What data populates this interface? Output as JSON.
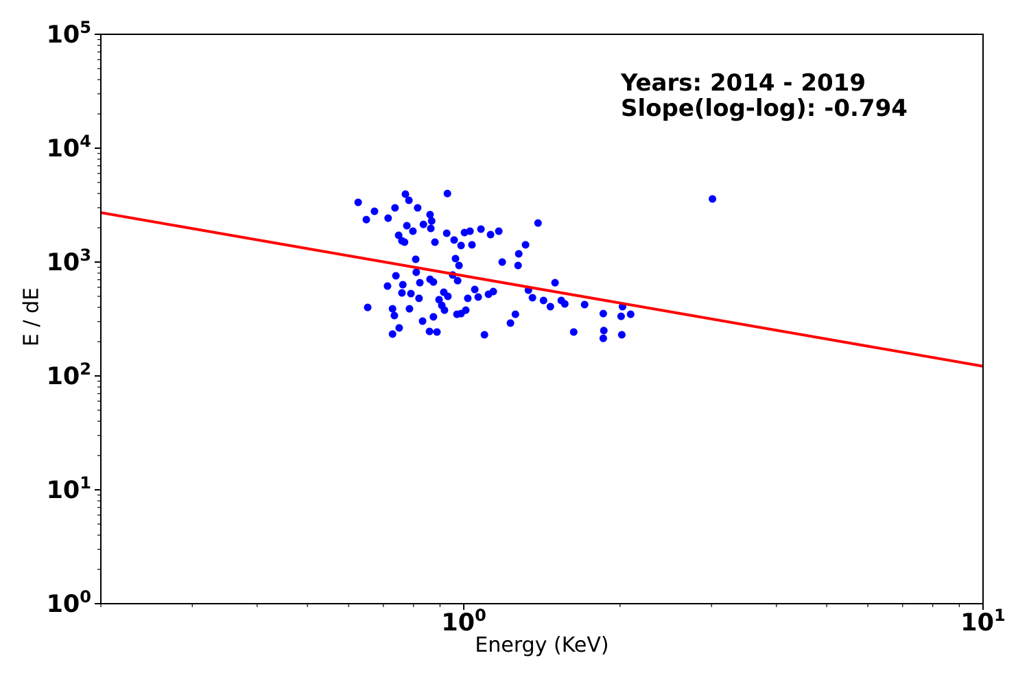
{
  "chart_data": {
    "type": "scatter",
    "title": "",
    "xlabel": "Energy (KeV)",
    "ylabel": "E / dE",
    "x_scale": "log",
    "y_scale": "log",
    "xlim": [
      0.2,
      10
    ],
    "ylim": [
      1,
      100000
    ],
    "x_tick_exponents": [
      0,
      1
    ],
    "y_tick_exponents": [
      0,
      1,
      2,
      3,
      4,
      5
    ],
    "grid": false,
    "legend": "none",
    "marker_color": "#0000ff",
    "line_color": "#ff0000",
    "text_color": "#000000",
    "annotation_lines": [
      "Years: 2014 - 2019",
      "Slope(log-log): -0.794"
    ],
    "fit_line": {
      "slope_loglog": -0.794,
      "value_at_1kev": 757,
      "x_range": [
        0.2,
        10
      ]
    },
    "points": [
      [
        0.626,
        3343
      ],
      [
        0.649,
        2361
      ],
      [
        0.673,
        2790
      ],
      [
        0.715,
        2430
      ],
      [
        0.737,
        2992
      ],
      [
        0.772,
        3947
      ],
      [
        0.784,
        3484
      ],
      [
        0.777,
        2085
      ],
      [
        0.798,
        1866
      ],
      [
        0.815,
        2992
      ],
      [
        0.749,
        1718
      ],
      [
        0.76,
        1538
      ],
      [
        0.769,
        1496
      ],
      [
        0.836,
        2143
      ],
      [
        0.861,
        2606
      ],
      [
        0.867,
        2296
      ],
      [
        0.864,
        1972
      ],
      [
        0.88,
        1496
      ],
      [
        0.93,
        4000
      ],
      [
        0.927,
        1791
      ],
      [
        0.958,
        1560
      ],
      [
        0.988,
        1396
      ],
      [
        0.808,
        1057
      ],
      [
        0.964,
        1072
      ],
      [
        1.003,
        1816
      ],
      [
        1.028,
        1866
      ],
      [
        1.037,
        1416
      ],
      [
        1.079,
        1945
      ],
      [
        1.126,
        1742
      ],
      [
        1.168,
        1866
      ],
      [
        1.39,
        2203
      ],
      [
        1.315,
        1416
      ],
      [
        1.276,
        1181
      ],
      [
        1.186,
        1000
      ],
      [
        1.272,
        933
      ],
      [
        0.979,
        933
      ],
      [
        3.013,
        3581
      ],
      [
        0.653,
        400
      ],
      [
        0.713,
        615
      ],
      [
        0.74,
        758
      ],
      [
        0.763,
        633
      ],
      [
        0.76,
        536
      ],
      [
        0.791,
        528
      ],
      [
        0.729,
        389
      ],
      [
        0.735,
        339
      ],
      [
        0.786,
        389
      ],
      [
        0.751,
        264
      ],
      [
        0.729,
        233
      ],
      [
        0.81,
        813
      ],
      [
        0.823,
        659
      ],
      [
        0.82,
        480
      ],
      [
        0.861,
        706
      ],
      [
        0.874,
        668
      ],
      [
        0.833,
        303
      ],
      [
        0.915,
        543
      ],
      [
        0.932,
        500
      ],
      [
        0.896,
        467
      ],
      [
        0.907,
        417
      ],
      [
        0.918,
        378
      ],
      [
        0.874,
        330
      ],
      [
        0.859,
        246
      ],
      [
        0.888,
        243
      ],
      [
        0.97,
        348
      ],
      [
        0.988,
        353
      ],
      [
        1.009,
        378
      ],
      [
        1.018,
        480
      ],
      [
        0.952,
        769
      ],
      [
        0.973,
        687
      ],
      [
        1.05,
        574
      ],
      [
        1.066,
        493
      ],
      [
        1.116,
        521
      ],
      [
        1.14,
        551
      ],
      [
        1.332,
        566
      ],
      [
        1.356,
        486
      ],
      [
        1.424,
        460
      ],
      [
        1.468,
        406
      ],
      [
        1.499,
        659
      ],
      [
        1.541,
        460
      ],
      [
        1.565,
        429
      ],
      [
        1.257,
        348
      ],
      [
        1.23,
        291
      ],
      [
        1.096,
        230
      ],
      [
        1.628,
        243
      ],
      [
        1.709,
        423
      ],
      [
        1.856,
        353
      ],
      [
        2.022,
        406
      ],
      [
        2.009,
        334
      ],
      [
        2.096,
        348
      ],
      [
        1.861,
        250
      ],
      [
        1.856,
        214
      ],
      [
        2.015,
        230
      ]
    ]
  }
}
